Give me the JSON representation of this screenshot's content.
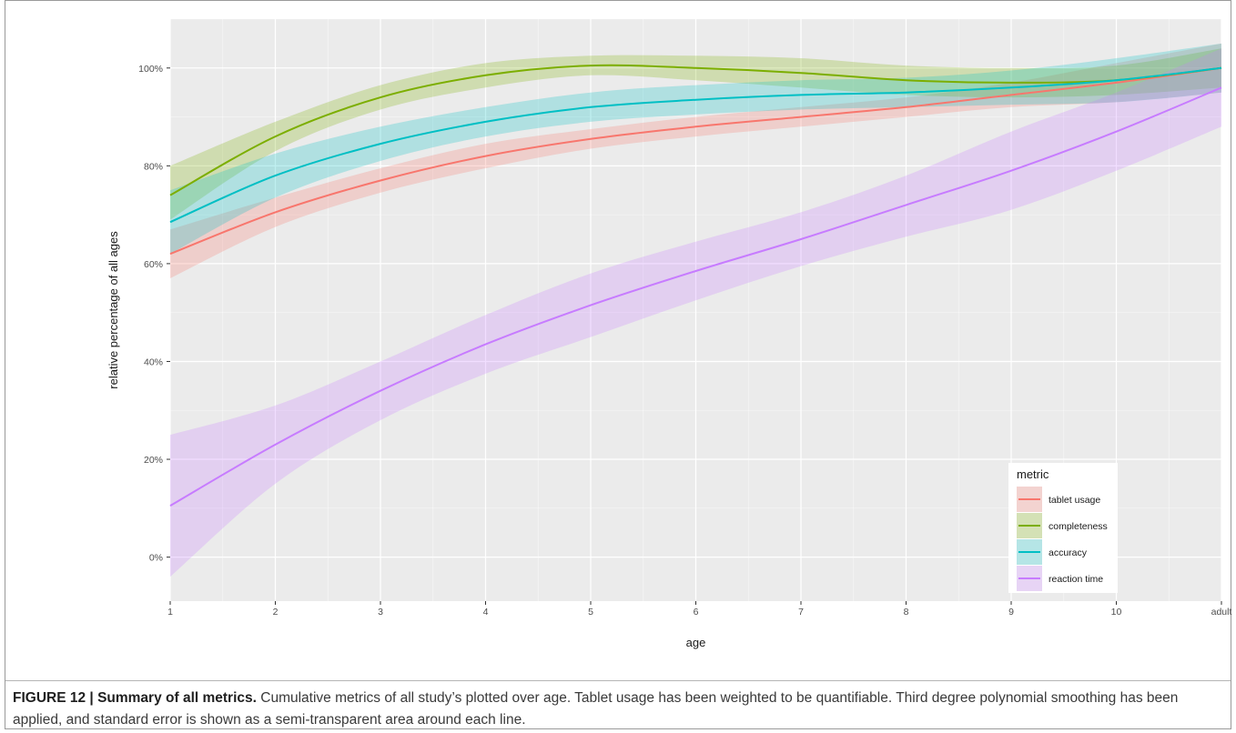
{
  "caption": {
    "label": "FIGURE 12 |",
    "title": "Summary of all metrics.",
    "text": "Cumulative metrics of all study’s plotted over age. Tablet usage has been weighted to be quantifiable. Third degree polynomial smoothing has been applied, and standard error is shown as a semi-transparent area around each line."
  },
  "colors": {
    "panel_background": "#ebebeb",
    "grid": "#ffffff",
    "tablet_usage": "#f8766d",
    "completeness": "#7cae00",
    "accuracy": "#00bfc4",
    "reaction_time": "#c77cff"
  },
  "chart_data": {
    "type": "line",
    "xlabel": "age",
    "ylabel": "relative percentage of all ages",
    "x_ticks": [
      "1",
      "2",
      "3",
      "4",
      "5",
      "6",
      "7",
      "8",
      "9",
      "10",
      "adult"
    ],
    "x": [
      1,
      2,
      3,
      4,
      5,
      6,
      7,
      8,
      9,
      10,
      11
    ],
    "xlim": [
      1,
      11
    ],
    "ylim": [
      -9,
      110
    ],
    "y_ticks": [
      0,
      20,
      40,
      60,
      80,
      100
    ],
    "y_tick_labels": [
      "0%",
      "20%",
      "40%",
      "60%",
      "80%",
      "100%"
    ],
    "grid": true,
    "legend_title": "metric",
    "legend_position": "bottom-right",
    "series": [
      {
        "name": "tablet usage",
        "color_key": "tablet_usage",
        "values": [
          62,
          70.5,
          77,
          82,
          85.5,
          88,
          90,
          92,
          94.5,
          97,
          100
        ],
        "lower": [
          57,
          67.5,
          74.5,
          79.5,
          83.5,
          86,
          88,
          90,
          92,
          93,
          95
        ],
        "upper": [
          67,
          73.5,
          79.5,
          84.5,
          87.5,
          90,
          92,
          94,
          97,
          101,
          105
        ]
      },
      {
        "name": "completeness",
        "color_key": "completeness",
        "values": [
          74,
          86,
          94,
          98.5,
          100.5,
          100,
          99,
          97.5,
          97,
          97.5,
          100
        ],
        "lower": [
          69,
          83,
          91.5,
          96,
          98.5,
          97.5,
          96,
          94.5,
          94,
          94.5,
          96
        ],
        "upper": [
          80,
          89,
          96.5,
          101,
          102.5,
          102.5,
          102,
          100.5,
          100,
          100.5,
          104
        ]
      },
      {
        "name": "accuracy",
        "color_key": "accuracy",
        "values": [
          68.5,
          78,
          84.5,
          89,
          92,
          93.5,
          94.5,
          95,
          96,
          97.5,
          100
        ],
        "lower": [
          62,
          73.5,
          81,
          86,
          89,
          90.5,
          91.5,
          92,
          92.5,
          93,
          95
        ],
        "upper": [
          75,
          82.5,
          88,
          92,
          95,
          96.5,
          97.5,
          98,
          99.5,
          102,
          105
        ]
      },
      {
        "name": "reaction time",
        "color_key": "reaction_time",
        "values": [
          10.5,
          23,
          34,
          43.5,
          51.5,
          58.5,
          65,
          72,
          79,
          87,
          96
        ],
        "lower": [
          -4,
          15,
          28,
          37.5,
          45,
          52.5,
          59.5,
          65.5,
          71,
          79,
          88
        ],
        "upper": [
          25,
          31,
          40,
          49.5,
          58,
          64.5,
          70.5,
          78,
          87,
          95,
          104
        ]
      }
    ]
  }
}
